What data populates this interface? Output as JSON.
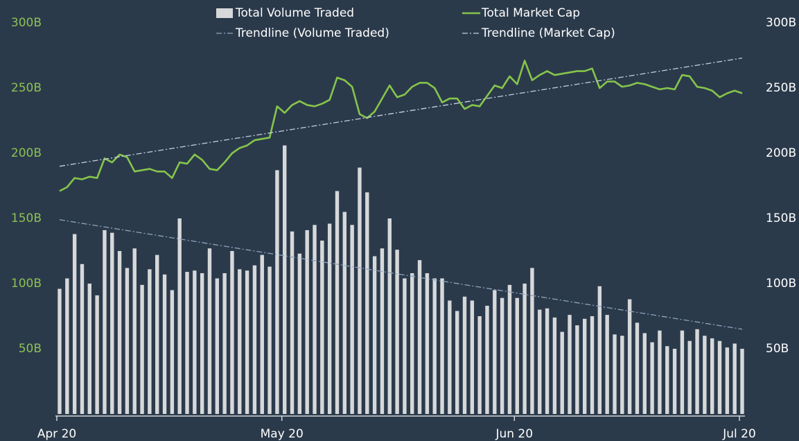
{
  "chart_data": {
    "type": "bar_line",
    "x": [
      0,
      1,
      2,
      3,
      4,
      5,
      6,
      7,
      8,
      9,
      10,
      11,
      12,
      13,
      14,
      15,
      16,
      17,
      18,
      19,
      20,
      21,
      22,
      23,
      24,
      25,
      26,
      27,
      28,
      29,
      30,
      31,
      32,
      33,
      34,
      35,
      36,
      37,
      38,
      39,
      40,
      41,
      42,
      43,
      44,
      45,
      46,
      47,
      48,
      49,
      50,
      51,
      52,
      53,
      54,
      55,
      56,
      57,
      58,
      59,
      60,
      61,
      62,
      63,
      64,
      65,
      66,
      67,
      68,
      69,
      70,
      71,
      72,
      73,
      74,
      75,
      76,
      77,
      78,
      79,
      80,
      81,
      82,
      83,
      84,
      85,
      86,
      87,
      88,
      89,
      90,
      91
    ],
    "xlim": [
      0,
      91
    ],
    "xticks": [
      {
        "value": 0,
        "label": "Apr 20"
      },
      {
        "value": 30,
        "label": "May 20"
      },
      {
        "value": 61,
        "label": "Jun 20"
      },
      {
        "value": 91,
        "label": "Jul 20"
      }
    ],
    "ylim": [
      0,
      300
    ],
    "yticks": [
      {
        "value": 50,
        "label": "50B"
      },
      {
        "value": 100,
        "label": "100B"
      },
      {
        "value": 150,
        "label": "150B"
      },
      {
        "value": 200,
        "label": "200B"
      },
      {
        "value": 250,
        "label": "250B"
      },
      {
        "value": 300,
        "label": "300B"
      }
    ],
    "y2lim": [
      0,
      300
    ],
    "y2ticks": [
      {
        "value": 50,
        "label": "50B"
      },
      {
        "value": 100,
        "label": "100B"
      },
      {
        "value": 150,
        "label": "150B"
      },
      {
        "value": 200,
        "label": "200B"
      },
      {
        "value": 250,
        "label": "250B"
      },
      {
        "value": 300,
        "label": "300B"
      }
    ],
    "series": [
      {
        "name": "Total Volume Traded",
        "type": "bar",
        "axis": "y2",
        "color": "#d6d8da",
        "values": [
          96,
          104,
          138,
          115,
          100,
          91,
          141,
          139,
          125,
          112,
          127,
          99,
          111,
          122,
          107,
          95,
          150,
          109,
          110,
          108,
          127,
          104,
          108,
          125,
          111,
          110,
          114,
          122,
          113,
          187,
          206,
          140,
          123,
          141,
          145,
          133,
          146,
          171,
          155,
          145,
          189,
          170,
          121,
          127,
          150,
          126,
          104,
          108,
          118,
          108,
          104,
          104,
          87,
          79,
          90,
          87,
          75,
          83,
          95,
          89,
          99,
          89,
          100,
          112,
          80,
          81,
          74,
          63,
          76,
          68,
          73,
          75,
          98,
          76,
          61,
          60,
          88,
          70,
          62,
          55,
          64,
          52,
          50,
          64,
          56,
          65,
          60,
          58,
          56,
          51,
          54,
          50
        ]
      },
      {
        "name": "Total Market Cap",
        "type": "line",
        "color": "#86c54b",
        "values": [
          171,
          174,
          181,
          180,
          182,
          181,
          196,
          193,
          199,
          197,
          186,
          187,
          188,
          186,
          186,
          181,
          193,
          192,
          199,
          195,
          188,
          187,
          193,
          200,
          204,
          206,
          210,
          211,
          212,
          236,
          231,
          237,
          240,
          237,
          236,
          238,
          241,
          258,
          256,
          251,
          230,
          227,
          232,
          242,
          252,
          243,
          245,
          251,
          254,
          254,
          250,
          239,
          242,
          242,
          234,
          237,
          236,
          244,
          252,
          250,
          259,
          253,
          271,
          256,
          260,
          263,
          260,
          261,
          262,
          263,
          263,
          265,
          250,
          255,
          255,
          251,
          252,
          254,
          253,
          251,
          249,
          250,
          249,
          260,
          259,
          251,
          250,
          248,
          243,
          246,
          248,
          246
        ]
      },
      {
        "name": "Trendline (Volume Traded)",
        "type": "trend",
        "axis": "y2",
        "color": "#8fa3bd",
        "x": [
          0,
          91
        ],
        "values": [
          149,
          65
        ]
      },
      {
        "name": "Trendline (Market Cap)",
        "type": "trend",
        "color": "#c3d0e2",
        "x": [
          0,
          91
        ],
        "values": [
          190,
          273
        ]
      }
    ]
  }
}
